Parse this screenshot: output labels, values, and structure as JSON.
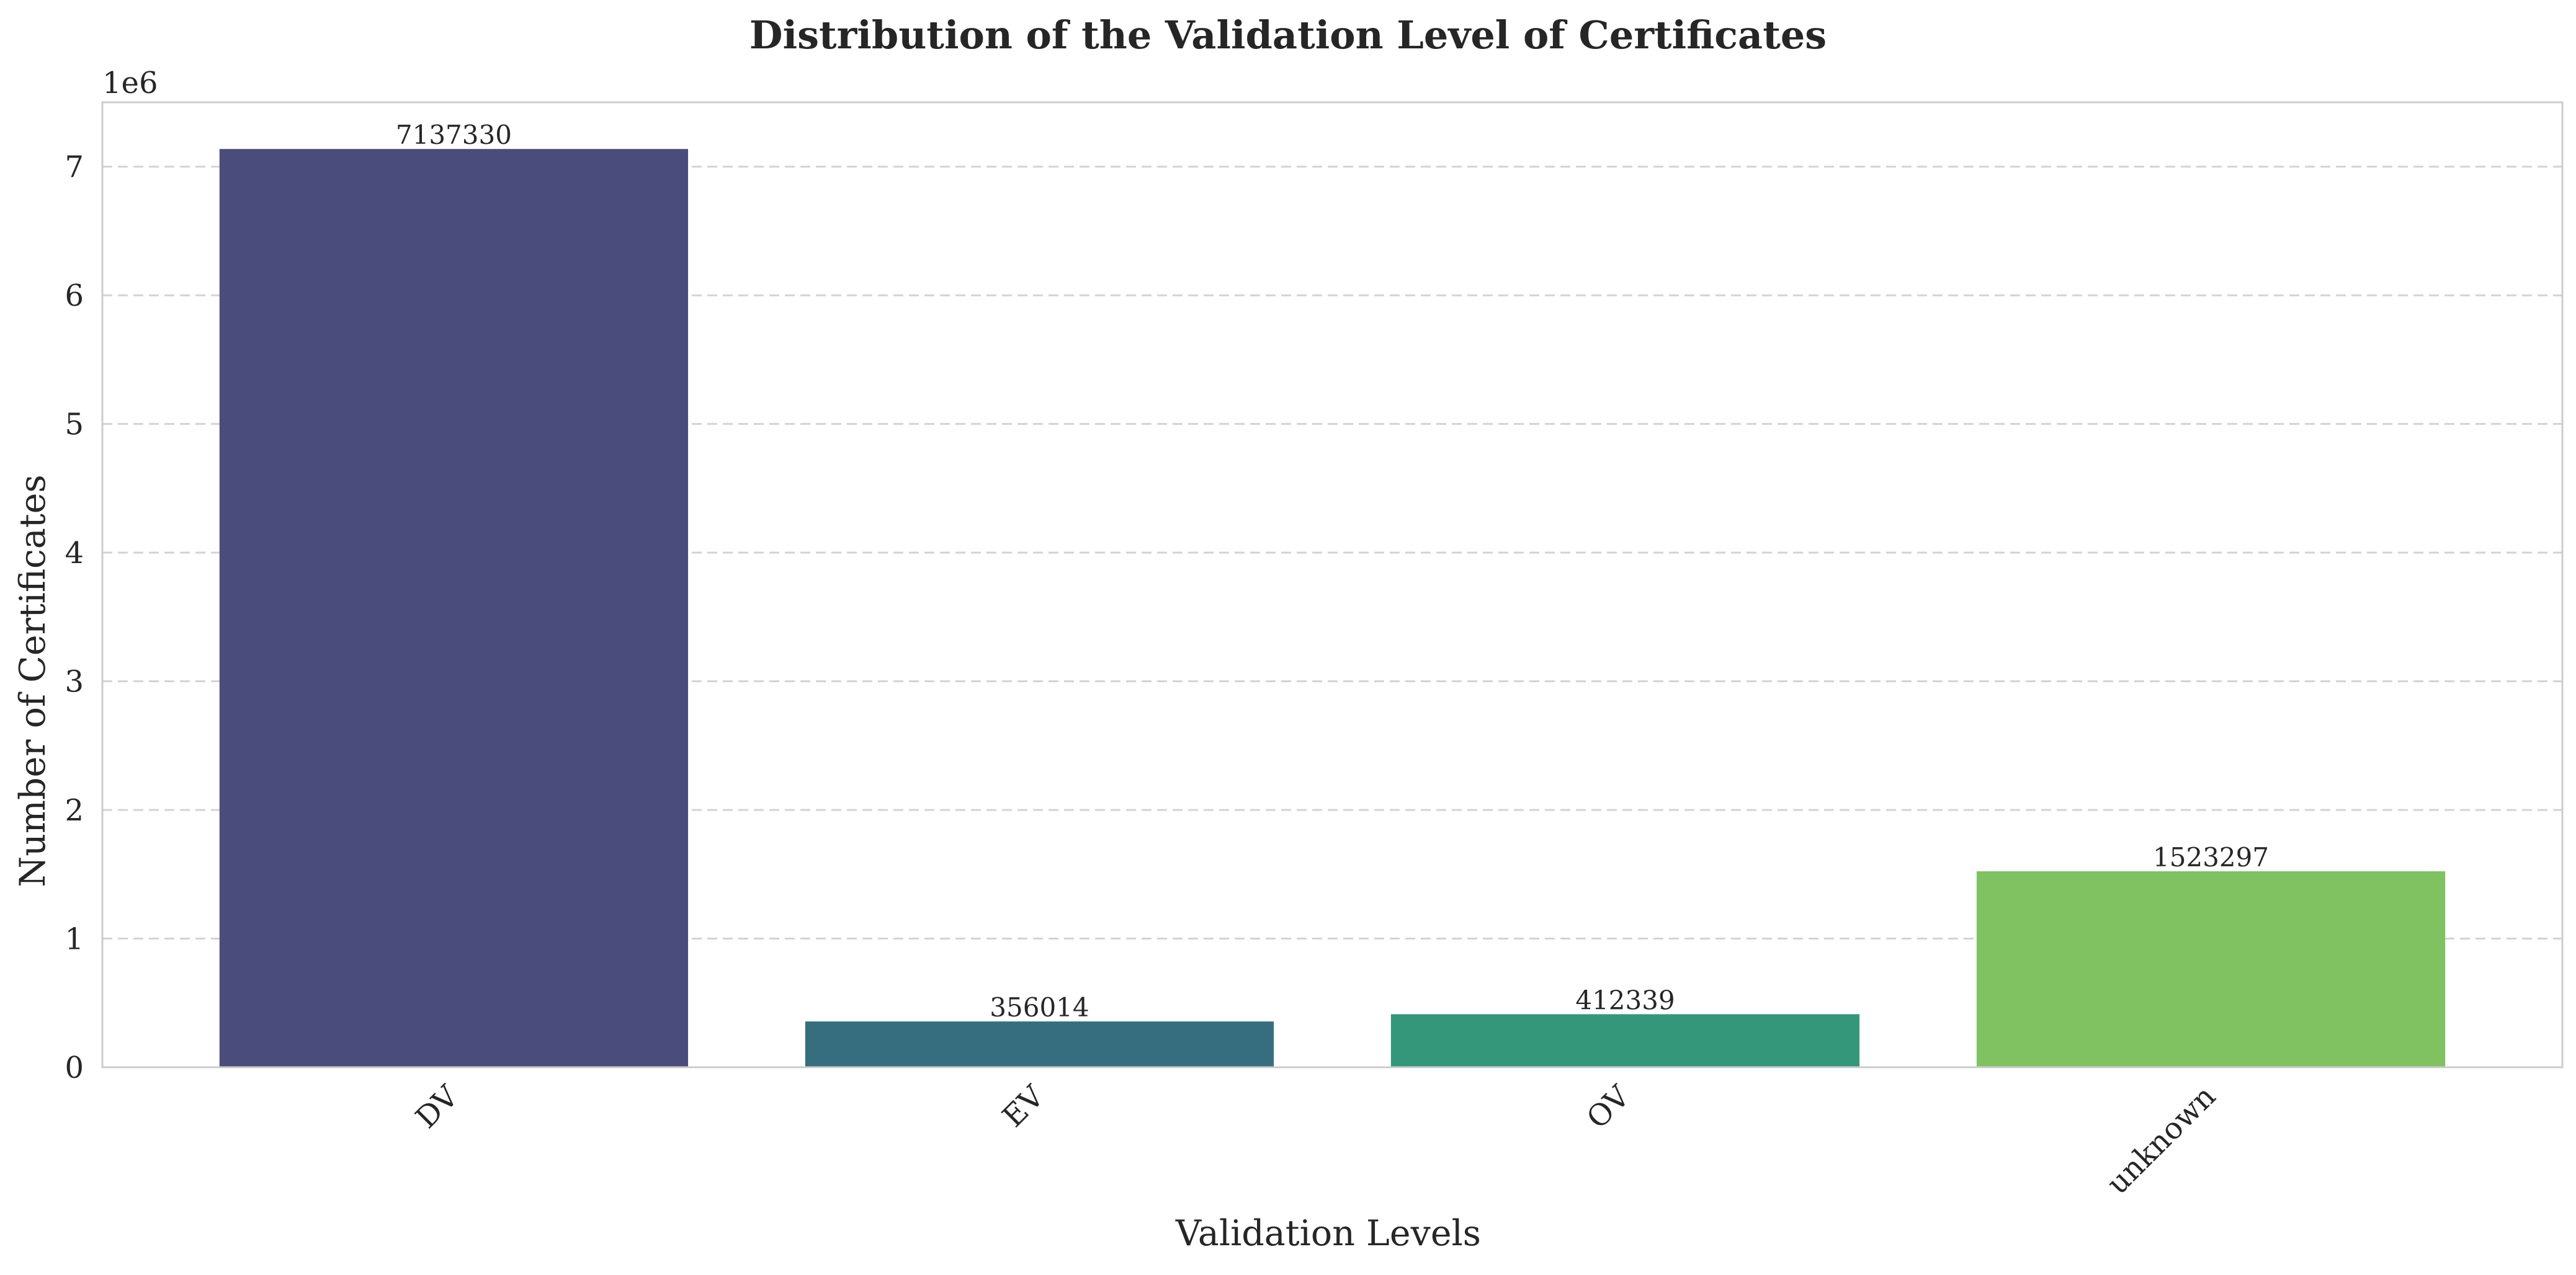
{
  "chart_data": {
    "type": "bar",
    "title": "Distribution of the Validation Level of Certificates",
    "xlabel": "Validation Levels",
    "ylabel": "Number of Certificates",
    "y_offset_label": "1e6",
    "categories": [
      "DV",
      "EV",
      "OV",
      "unknown"
    ],
    "values": [
      7137330,
      356014,
      412339,
      1523297
    ],
    "data_labels": [
      "7137330",
      "356014",
      "412339",
      "1523297"
    ],
    "bar_colors": [
      "#4a4c7c",
      "#366e80",
      "#34977a",
      "#80c262"
    ],
    "ylim": [
      0,
      7500000
    ],
    "y_ticks": [
      0,
      1000000,
      2000000,
      3000000,
      4000000,
      5000000,
      6000000,
      7000000
    ],
    "y_tick_labels": [
      "0",
      "1",
      "2",
      "3",
      "4",
      "5",
      "6",
      "7"
    ],
    "grid": "horizontal dashed",
    "x_tick_rotation": 45,
    "legend": "none"
  }
}
